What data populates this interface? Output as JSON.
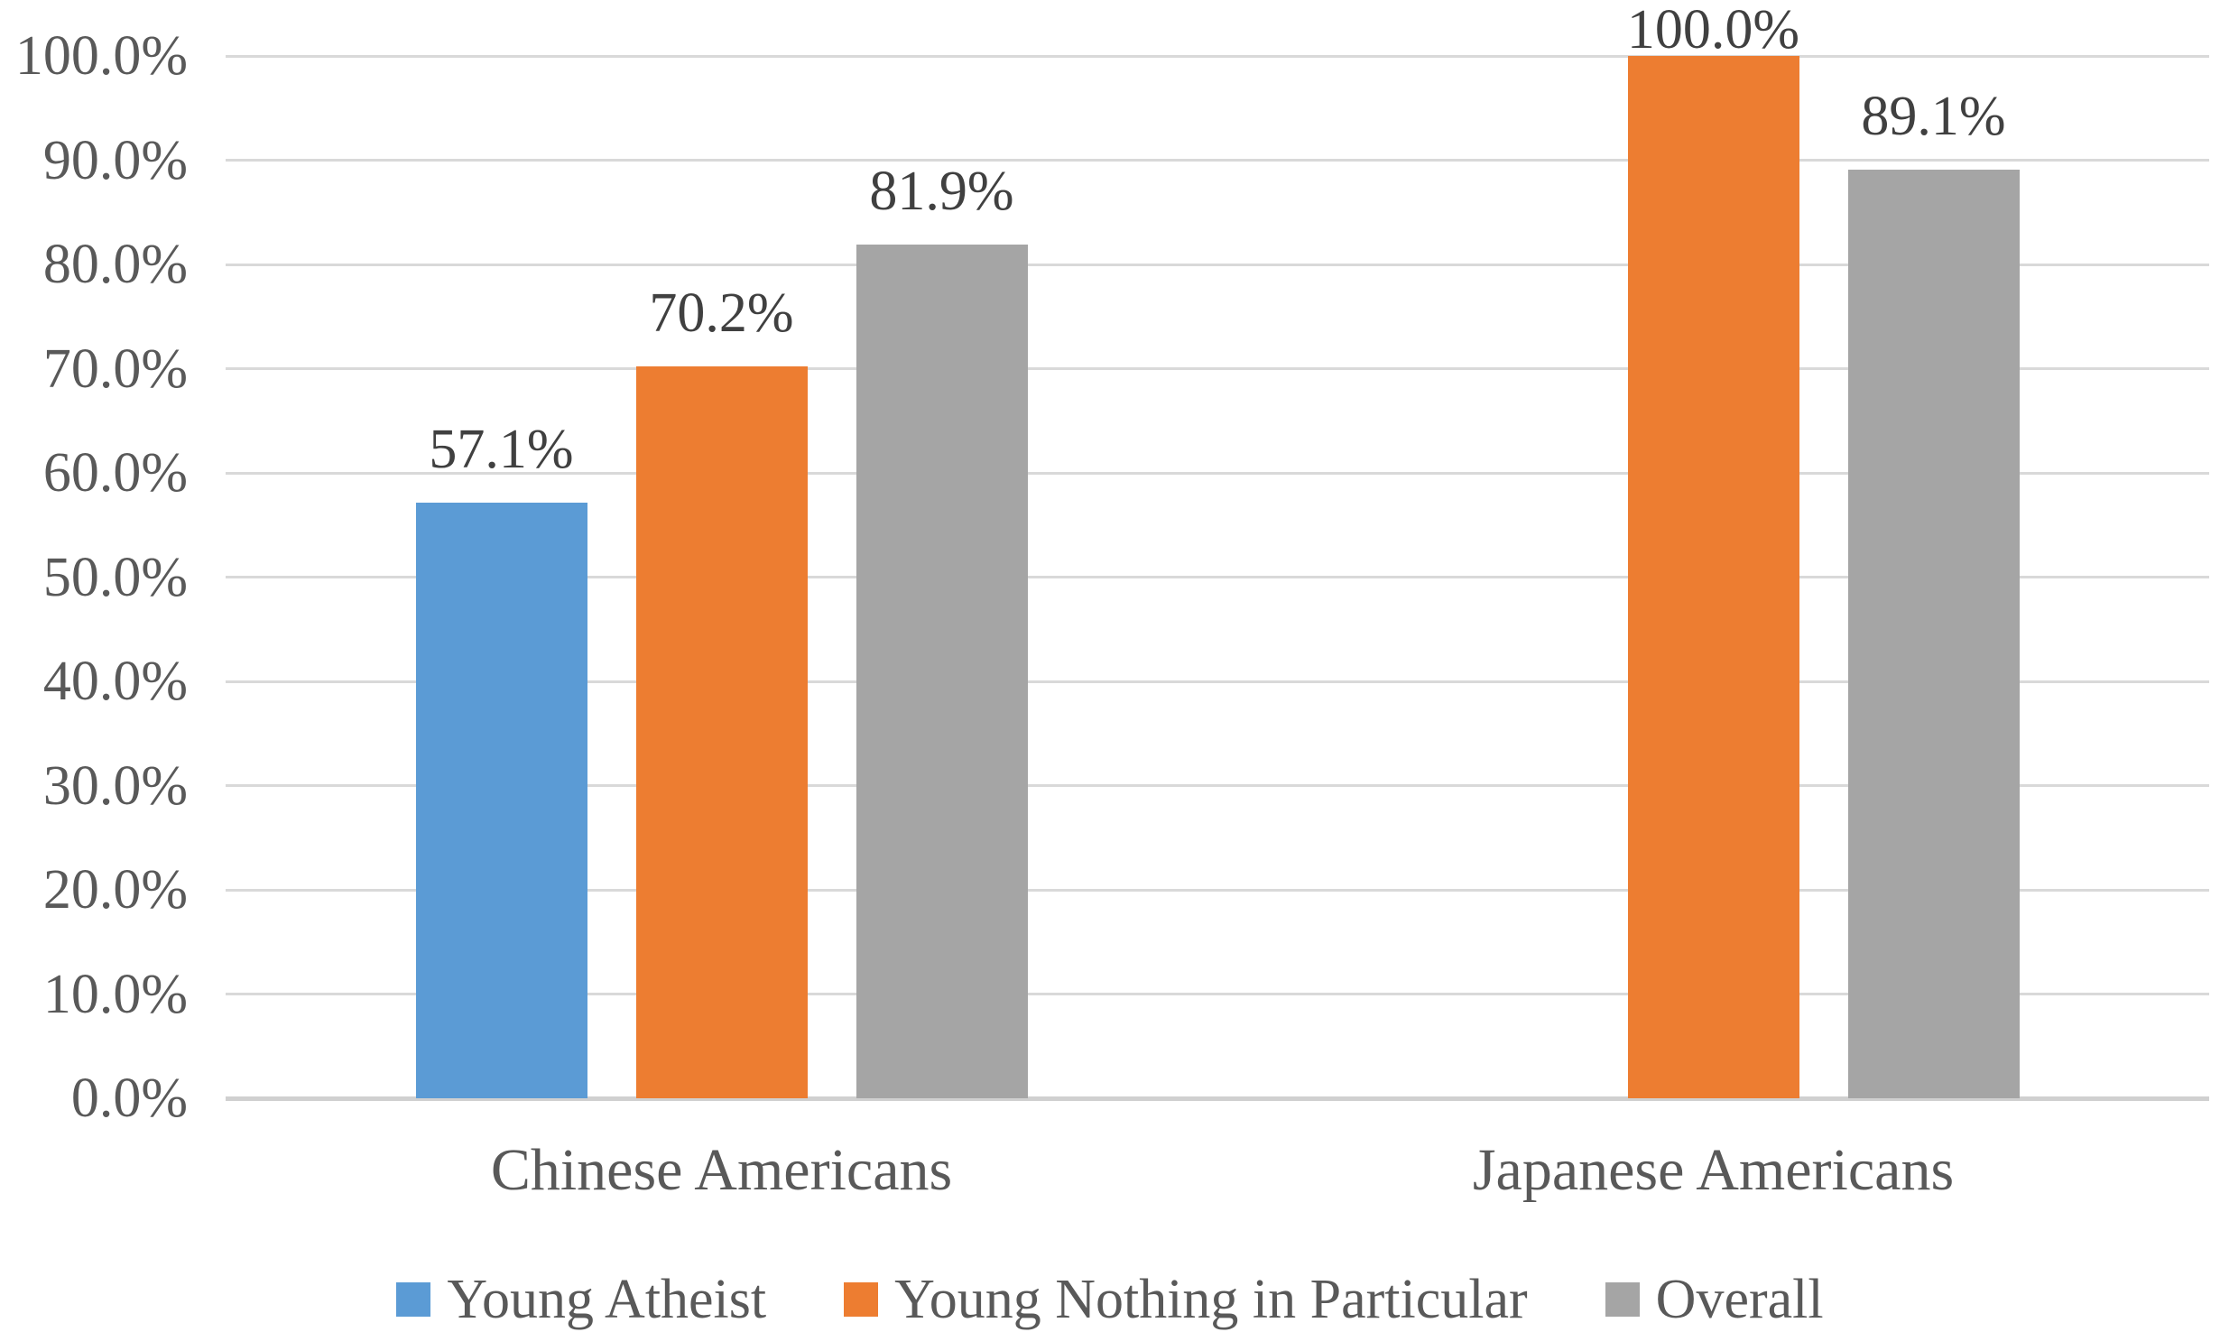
{
  "chart_data": {
    "type": "bar",
    "title": "",
    "categories": [
      "Chinese Americans",
      "Japanese Americans"
    ],
    "series": [
      {
        "name": "Young Atheist",
        "color": "#5B9BD5",
        "values": [
          57.1,
          null
        ],
        "data_labels": [
          "57.1%",
          null
        ]
      },
      {
        "name": "Young Nothing in Particular",
        "color": "#ED7D31",
        "values": [
          70.2,
          100.0
        ],
        "data_labels": [
          "70.2%",
          "100.0%"
        ]
      },
      {
        "name": "Overall",
        "color": "#A5A5A5",
        "values": [
          81.9,
          89.1
        ],
        "data_labels": [
          "81.9%",
          "89.1%"
        ]
      }
    ],
    "y_axis": {
      "min": 0,
      "max": 100,
      "step": 10,
      "tick_labels": [
        "0.0%",
        "10.0%",
        "20.0%",
        "30.0%",
        "40.0%",
        "50.0%",
        "60.0%",
        "70.0%",
        "80.0%",
        "90.0%",
        "100.0%"
      ]
    },
    "xlabel": "",
    "ylabel": "",
    "grid": true,
    "legend_position": "bottom",
    "legend_entries": [
      "Young Atheist",
      "Young Nothing in Particular",
      "Overall"
    ]
  },
  "styles": {
    "background": "#FFFFFF",
    "grid_color": "#D9D9D9",
    "axis_line_color": "#D0D0D0",
    "tick_text_color": "#595959",
    "data_label_color": "#404040",
    "category_text_color": "#595959",
    "legend_text_color": "#595959",
    "series_colors": [
      "#5B9BD5",
      "#ED7D31",
      "#A5A5A5"
    ]
  }
}
